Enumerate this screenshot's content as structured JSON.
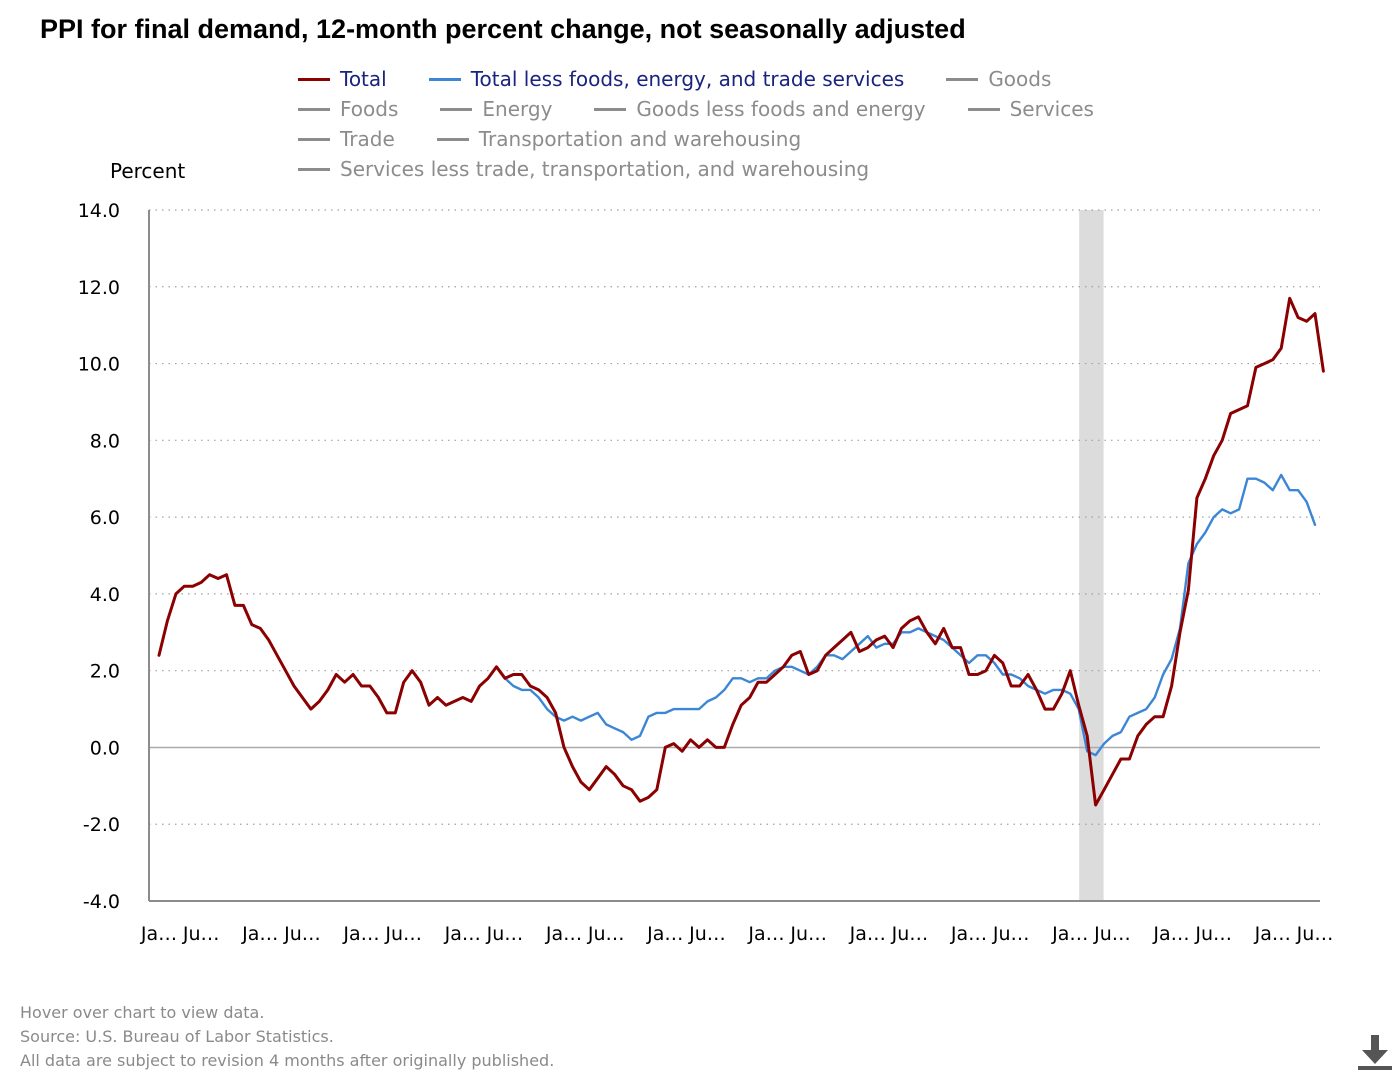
{
  "title": "PPI for final demand, 12-month percent change, not seasonally adjusted",
  "legend": [
    [
      {
        "label": "Total",
        "color": "#8b0000",
        "text_color": "#1a237e"
      },
      {
        "label": "Total less foods, energy, and trade services",
        "color": "#3b86d6",
        "text_color": "#1a237e"
      },
      {
        "label": "Goods",
        "color": "#8c8c8c",
        "text_color": "#8c8c8c"
      }
    ],
    [
      {
        "label": "Foods",
        "color": "#8c8c8c",
        "text_color": "#8c8c8c"
      },
      {
        "label": "Energy",
        "color": "#8c8c8c",
        "text_color": "#8c8c8c"
      },
      {
        "label": "Goods less foods and energy",
        "color": "#8c8c8c",
        "text_color": "#8c8c8c"
      },
      {
        "label": "Services",
        "color": "#8c8c8c",
        "text_color": "#8c8c8c"
      }
    ],
    [
      {
        "label": "Trade",
        "color": "#8c8c8c",
        "text_color": "#8c8c8c"
      },
      {
        "label": "Transportation and warehousing",
        "color": "#8c8c8c",
        "text_color": "#8c8c8c"
      }
    ],
    [
      {
        "label": "Services less trade, transportation, and warehousing",
        "color": "#8c8c8c",
        "text_color": "#8c8c8c"
      }
    ]
  ],
  "footnotes": {
    "hover": "Hover over chart to view data.",
    "source": "Source: U.S. Bureau of Labor Statistics.",
    "revision": "All data are subject to revision 4 months after originally published."
  },
  "icons": {
    "download": "download-icon"
  },
  "chart_data": {
    "type": "line",
    "title": "PPI for final demand, 12-month percent change, not seasonally adjusted",
    "ylabel": "Percent",
    "xlabel": "",
    "ylim": [
      -4.0,
      14.0
    ],
    "yticks": [
      -4.0,
      -2.0,
      0.0,
      2.0,
      4.0,
      6.0,
      8.0,
      10.0,
      12.0,
      14.0
    ],
    "ytick_labels": [
      "-4.0",
      "-2.0",
      "0.0",
      "2.0",
      "4.0",
      "6.0",
      "8.0",
      "10.0",
      "12.0",
      "14.0"
    ],
    "x_start": "2011-01",
    "x_end": "2022-06",
    "xticks": [
      "2011-01",
      "2011-06",
      "2012-01",
      "2012-06",
      "2013-01",
      "2013-06",
      "2014-01",
      "2014-06",
      "2015-01",
      "2015-06",
      "2016-01",
      "2016-06",
      "2017-01",
      "2017-06",
      "2018-01",
      "2018-06",
      "2019-01",
      "2019-06",
      "2020-01",
      "2020-06",
      "2021-01",
      "2021-06",
      "2022-01",
      "2022-06"
    ],
    "xtick_labels": [
      "Ja…",
      "Ju…",
      "Ja…",
      "Ju…",
      "Ja…",
      "Ju…",
      "Ja…",
      "Ju…",
      "Ja…",
      "Ju…",
      "Ja…",
      "Ju…",
      "Ja…",
      "Ju…",
      "Ja…",
      "Ju…",
      "Ja…",
      "Ju…",
      "Ja…",
      "Ju…",
      "Ja…",
      "Ju…",
      "Ja…",
      "Ju…"
    ],
    "grid": true,
    "recession_band": {
      "start": "2020-03",
      "end": "2020-04"
    },
    "series": [
      {
        "name": "Total",
        "color": "#8b0000",
        "start": "2011-01",
        "values": [
          2.4,
          3.3,
          4.0,
          4.2,
          4.2,
          4.3,
          4.5,
          4.4,
          4.5,
          3.7,
          3.7,
          3.2,
          3.1,
          2.8,
          2.4,
          2.0,
          1.6,
          1.3,
          1.0,
          1.2,
          1.5,
          1.9,
          1.7,
          1.9,
          1.6,
          1.6,
          1.3,
          0.9,
          0.9,
          1.7,
          2.0,
          1.7,
          1.1,
          1.3,
          1.1,
          1.2,
          1.3,
          1.2,
          1.6,
          1.8,
          2.1,
          1.8,
          1.9,
          1.9,
          1.6,
          1.5,
          1.3,
          0.9,
          0.0,
          -0.5,
          -0.9,
          -1.1,
          -0.8,
          -0.5,
          -0.7,
          -1.0,
          -1.1,
          -1.4,
          -1.3,
          -1.1,
          0.0,
          0.1,
          -0.1,
          0.2,
          0.0,
          0.2,
          0.0,
          0.0,
          0.6,
          1.1,
          1.3,
          1.7,
          1.7,
          1.9,
          2.1,
          2.4,
          2.5,
          1.9,
          2.0,
          2.4,
          2.6,
          2.8,
          3.0,
          2.5,
          2.6,
          2.8,
          2.9,
          2.6,
          3.1,
          3.3,
          3.4,
          3.0,
          2.7,
          3.1,
          2.6,
          2.6,
          1.9,
          1.9,
          2.0,
          2.4,
          2.2,
          1.6,
          1.6,
          1.9,
          1.5,
          1.0,
          1.0,
          1.4,
          2.0,
          1.1,
          0.3,
          -1.5,
          -1.1,
          -0.7,
          -0.3,
          -0.3,
          0.3,
          0.6,
          0.8,
          0.8,
          1.6,
          3.0,
          4.1,
          6.5,
          7.0,
          7.6,
          8.0,
          8.7,
          8.8,
          8.9,
          9.9,
          10.0,
          10.1,
          10.4,
          11.7,
          11.2,
          11.1,
          11.3,
          9.8
        ]
      },
      {
        "name": "Total less foods, energy, and trade services",
        "color": "#3b86d6",
        "start": "2014-06",
        "values": [
          1.8,
          1.6,
          1.5,
          1.5,
          1.3,
          1.0,
          0.8,
          0.7,
          0.8,
          0.7,
          0.8,
          0.9,
          0.6,
          0.5,
          0.4,
          0.2,
          0.3,
          0.8,
          0.9,
          0.9,
          1.0,
          1.0,
          1.0,
          1.0,
          1.2,
          1.3,
          1.5,
          1.8,
          1.8,
          1.7,
          1.8,
          1.8,
          2.0,
          2.1,
          2.1,
          2.0,
          1.9,
          2.1,
          2.4,
          2.4,
          2.3,
          2.5,
          2.7,
          2.9,
          2.6,
          2.7,
          2.7,
          3.0,
          3.0,
          3.1,
          3.0,
          2.9,
          2.8,
          2.6,
          2.4,
          2.2,
          2.4,
          2.4,
          2.2,
          1.9,
          1.9,
          1.8,
          1.6,
          1.5,
          1.4,
          1.5,
          1.5,
          1.4,
          1.0,
          -0.1,
          -0.2,
          0.1,
          0.3,
          0.4,
          0.8,
          0.9,
          1.0,
          1.3,
          1.9,
          2.3,
          3.1,
          4.8,
          5.3,
          5.6,
          6.0,
          6.2,
          6.1,
          6.2,
          7.0,
          7.0,
          6.9,
          6.7,
          7.1,
          6.7,
          6.7,
          6.4,
          5.8
        ]
      }
    ]
  }
}
